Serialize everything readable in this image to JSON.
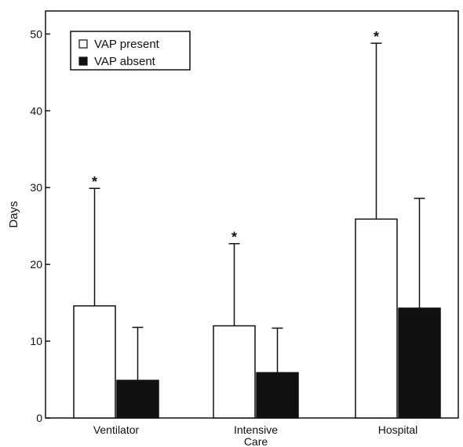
{
  "chart_data": {
    "type": "bar",
    "title": "",
    "xlabel": "",
    "ylabel": "Days",
    "ylim": [
      0,
      53
    ],
    "yticks": [
      0,
      10,
      20,
      30,
      40,
      50
    ],
    "grid": false,
    "legend_position": "top-left",
    "categories": [
      {
        "lines": [
          "Ventilator"
        ]
      },
      {
        "lines": [
          "Intensive",
          "Care"
        ]
      },
      {
        "lines": [
          "Hospital"
        ]
      }
    ],
    "series": [
      {
        "name": "VAP present",
        "fill": "#ffffff",
        "values": [
          14.6,
          12.0,
          25.9
        ],
        "error_upper": [
          29.9,
          22.7,
          48.8
        ],
        "significance": [
          "*",
          "*",
          "*"
        ]
      },
      {
        "name": "VAP absent",
        "fill": "#111111",
        "values": [
          4.9,
          5.9,
          14.3
        ],
        "error_upper": [
          11.8,
          11.7,
          28.6
        ],
        "significance": [
          "",
          "",
          ""
        ]
      }
    ]
  }
}
